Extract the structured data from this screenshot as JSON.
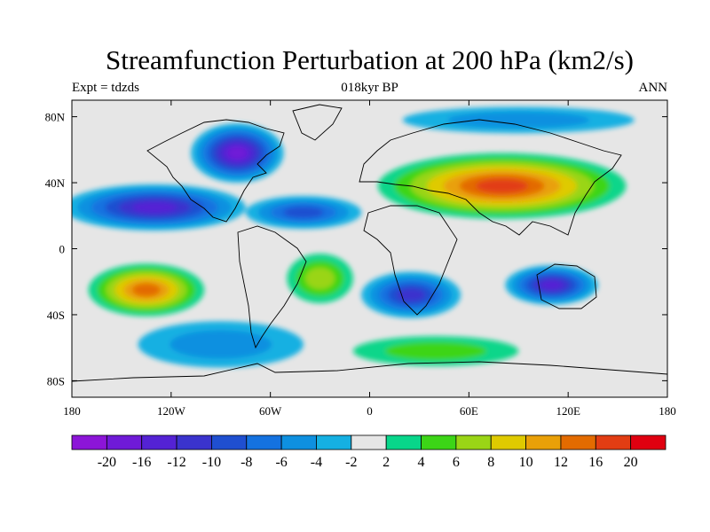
{
  "title": "Streamfunction Perturbation at 200 hPa (km2/s)",
  "left_subtitle": "Expt = tdzds",
  "center_subtitle": "018kyr BP",
  "right_subtitle": "ANN",
  "map_data": {
    "projection": "cylindrical-equidistant",
    "lon_range": [
      -180,
      180
    ],
    "lat_range": [
      -90,
      90
    ],
    "x_ticks": [
      {
        "lon": -180,
        "label": "180"
      },
      {
        "lon": -120,
        "label": "120W"
      },
      {
        "lon": -60,
        "label": "60W"
      },
      {
        "lon": 0,
        "label": "0"
      },
      {
        "lon": 60,
        "label": "60E"
      },
      {
        "lon": 120,
        "label": "120E"
      },
      {
        "lon": 180,
        "label": "180"
      }
    ],
    "y_ticks": [
      {
        "lat": 80,
        "label": "80N"
      },
      {
        "lat": 40,
        "label": "40N"
      },
      {
        "lat": 0,
        "label": "0"
      },
      {
        "lat": -40,
        "label": "40S"
      },
      {
        "lat": -80,
        "label": "80S"
      }
    ],
    "features": [
      {
        "name": "north-america-low",
        "lon": -80,
        "lat": 58,
        "rx": 28,
        "ry": 18,
        "level": -18
      },
      {
        "name": "east-pacific-low",
        "lon": -130,
        "lat": 25,
        "rx": 55,
        "ry": 14,
        "level": -12
      },
      {
        "name": "atlantic-low",
        "lon": -40,
        "lat": 22,
        "rx": 35,
        "ry": 10,
        "level": -8
      },
      {
        "name": "eurasia-high",
        "lon": 80,
        "lat": 38,
        "rx": 75,
        "ry": 20,
        "level": 16
      },
      {
        "name": "south-pacific-high",
        "lon": -135,
        "lat": -25,
        "rx": 35,
        "ry": 16,
        "level": 14
      },
      {
        "name": "south-atlantic-high",
        "lon": -30,
        "lat": -18,
        "rx": 20,
        "ry": 15,
        "level": 6
      },
      {
        "name": "south-africa-low",
        "lon": 25,
        "lat": -28,
        "rx": 30,
        "ry": 14,
        "level": -10
      },
      {
        "name": "australia-low",
        "lon": 110,
        "lat": -22,
        "rx": 28,
        "ry": 12,
        "level": -14
      },
      {
        "name": "southern-ocean-high",
        "lon": 40,
        "lat": -62,
        "rx": 50,
        "ry": 9,
        "level": 4
      },
      {
        "name": "southern-ocean-low",
        "lon": -90,
        "lat": -58,
        "rx": 50,
        "ry": 14,
        "level": -4
      },
      {
        "name": "arctic-low",
        "lon": 90,
        "lat": 78,
        "rx": 70,
        "ry": 8,
        "level": -4
      }
    ]
  },
  "colorbar": {
    "colors": [
      "#8c15d8",
      "#6f1ad7",
      "#5422d4",
      "#3a33cd",
      "#1f4fd0",
      "#1472e0",
      "#0e90e0",
      "#15b0e2",
      "#e6e6e6",
      "#08d68a",
      "#3cd517",
      "#9ad516",
      "#dfca00",
      "#e9a008",
      "#e36b00",
      "#e23d13",
      "#e00010"
    ],
    "labels": [
      "-20",
      "-16",
      "-12",
      "-10",
      "-8",
      "-6",
      "-4",
      "-2",
      "2",
      "4",
      "6",
      "8",
      "10",
      "12",
      "16",
      "20"
    ]
  }
}
